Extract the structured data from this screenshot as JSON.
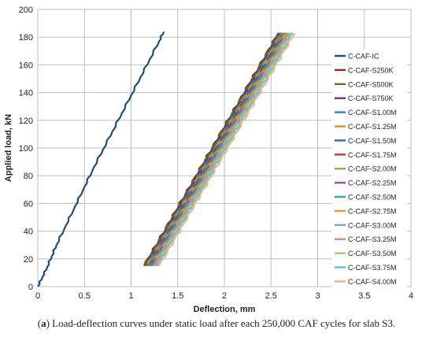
{
  "caption": {
    "label": "a",
    "text": " Load-deflection curves under static load after each 250,000 CAF cycles for slab S3."
  },
  "chart_data": {
    "type": "line",
    "xlabel": "Deflection, mm",
    "ylabel": "Applied load, kN",
    "xlim": [
      0,
      4
    ],
    "ylim": [
      0,
      200
    ],
    "xticks": [
      0,
      0.5,
      1,
      1.5,
      2,
      2.5,
      3,
      3.5,
      4
    ],
    "xtick_labels": [
      "0",
      "0.5",
      "1",
      "1.5",
      "2",
      "2.5",
      "3",
      "3.5",
      "4"
    ],
    "yticks": [
      0,
      20,
      40,
      60,
      80,
      100,
      120,
      140,
      160,
      180,
      200
    ],
    "ytick_labels": [
      "0",
      "20",
      "40",
      "60",
      "80",
      "100",
      "120",
      "140",
      "160",
      "180",
      "200"
    ],
    "grid": true,
    "legend_position": "right",
    "series": [
      {
        "name": "C-CAF-IC",
        "color": "#1f4e79",
        "x": [
          0,
          0.05,
          0.1,
          0.15,
          0.2,
          0.3,
          0.4,
          0.5,
          0.6,
          0.7,
          0.8,
          0.9,
          1.0,
          1.1,
          1.2,
          1.3,
          1.35
        ],
        "y": [
          0,
          7,
          14,
          22,
          30,
          44,
          58,
          72,
          86,
          99,
          112,
          125,
          138,
          151,
          164,
          177,
          184
        ]
      },
      {
        "name": "C-CAF-S250K",
        "color": "#8b2a1e",
        "x": [
          1.14,
          2.58
        ],
        "y": [
          15,
          183
        ]
      },
      {
        "name": "C-CAF-S500K",
        "color": "#5b7a1e",
        "x": [
          1.15,
          2.59
        ],
        "y": [
          15,
          183
        ]
      },
      {
        "name": "C-CAF-S750K",
        "color": "#5a3a86",
        "x": [
          1.16,
          2.6
        ],
        "y": [
          15,
          183
        ]
      },
      {
        "name": "C-CAF-S1.00M",
        "color": "#1e8fa8",
        "x": [
          1.17,
          2.61
        ],
        "y": [
          15,
          183
        ]
      },
      {
        "name": "C-CAF-S1.25M",
        "color": "#e0882e",
        "x": [
          1.18,
          2.62
        ],
        "y": [
          15,
          183
        ]
      },
      {
        "name": "C-CAF-S1.50M",
        "color": "#2e6fa8",
        "x": [
          1.19,
          2.63
        ],
        "y": [
          15,
          183
        ]
      },
      {
        "name": "C-CAF-S1.75M",
        "color": "#c03a32",
        "x": [
          1.2,
          2.64
        ],
        "y": [
          15,
          183
        ]
      },
      {
        "name": "C-CAF-S2.00M",
        "color": "#8cb33e",
        "x": [
          1.21,
          2.65
        ],
        "y": [
          15,
          183
        ]
      },
      {
        "name": "C-CAF-S2.25M",
        "color": "#7b5aa6",
        "x": [
          1.22,
          2.66
        ],
        "y": [
          15,
          183
        ]
      },
      {
        "name": "C-CAF-S2.50M",
        "color": "#2aa6c4",
        "x": [
          1.23,
          2.67
        ],
        "y": [
          15,
          183
        ]
      },
      {
        "name": "C-CAF-S2.75M",
        "color": "#f0962e",
        "x": [
          1.24,
          2.68
        ],
        "y": [
          15,
          183
        ]
      },
      {
        "name": "C-CAF-S3.00M",
        "color": "#7fa3c8",
        "x": [
          1.25,
          2.69
        ],
        "y": [
          15,
          183
        ]
      },
      {
        "name": "C-CAF-S3.25M",
        "color": "#d8848a",
        "x": [
          1.26,
          2.7
        ],
        "y": [
          15,
          183
        ]
      },
      {
        "name": "C-CAF-S3.50M",
        "color": "#a9c77a",
        "x": [
          1.27,
          2.71
        ],
        "y": [
          15,
          183
        ]
      },
      {
        "name": "C-CAF-S3.75M",
        "color": "#5cc2dc",
        "x": [
          1.28,
          2.73
        ],
        "y": [
          15,
          183
        ]
      },
      {
        "name": "C-CAF-S4.00M",
        "color": "#f2b07e",
        "x": [
          1.3,
          2.75
        ],
        "y": [
          15,
          183
        ]
      }
    ]
  }
}
